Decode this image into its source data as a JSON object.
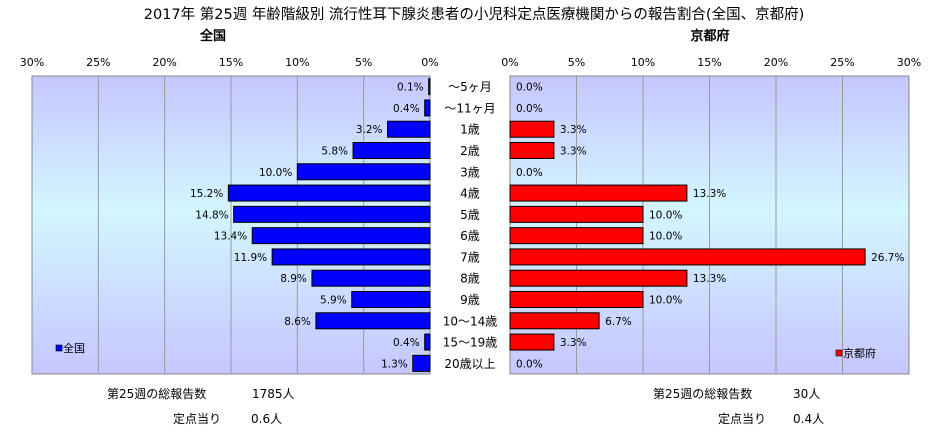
{
  "chart_data": {
    "type": "bar",
    "title": "2017年 第25週 年齢階級別 流行性耳下腺炎患者の小児科定点医療機関からの報告割合(全国、京都府)",
    "categories": [
      "～5ヶ月",
      "～11ヶ月",
      "1歳",
      "2歳",
      "3歳",
      "4歳",
      "5歳",
      "6歳",
      "7歳",
      "8歳",
      "9歳",
      "10～14歳",
      "15～19歳",
      "20歳以上"
    ],
    "left": {
      "panel_title": "全国",
      "legend": "全国",
      "color": "#0000FF",
      "ticks": [
        "30%",
        "25%",
        "20%",
        "15%",
        "10%",
        "5%",
        "0%"
      ],
      "xlim": [
        0,
        30
      ],
      "values": [
        0.1,
        0.4,
        3.2,
        5.8,
        10.0,
        15.2,
        14.8,
        13.4,
        11.9,
        8.9,
        5.9,
        8.6,
        0.4,
        1.3
      ],
      "labels": [
        "0.1%",
        "0.4%",
        "3.2%",
        "5.8%",
        "10.0%",
        "15.2%",
        "14.8%",
        "13.4%",
        "11.9%",
        "8.9%",
        "5.9%",
        "8.6%",
        "0.4%",
        "1.3%"
      ]
    },
    "right": {
      "panel_title": "京都府",
      "legend": "京都府",
      "color": "#FF0000",
      "ticks": [
        "0%",
        "5%",
        "10%",
        "15%",
        "20%",
        "25%",
        "30%"
      ],
      "xlim": [
        0,
        30
      ],
      "values": [
        0.0,
        0.0,
        3.3,
        3.3,
        0.0,
        13.3,
        10.0,
        10.0,
        26.7,
        13.3,
        10.0,
        6.7,
        3.3,
        0.0
      ],
      "labels": [
        "0.0%",
        "0.0%",
        "3.3%",
        "3.3%",
        "0.0%",
        "13.3%",
        "10.0%",
        "10.0%",
        "26.7%",
        "13.3%",
        "10.0%",
        "6.7%",
        "3.3%",
        "0.0%"
      ]
    }
  },
  "footer": {
    "left_total_label": "第25週の総報告数",
    "left_total_value": "1785人",
    "left_per_label": "定点当り",
    "left_per_value": "0.6人",
    "right_total_label": "第25週の総報告数",
    "right_total_value": "30人",
    "right_per_label": "定点当り",
    "right_per_value": "0.4人"
  }
}
